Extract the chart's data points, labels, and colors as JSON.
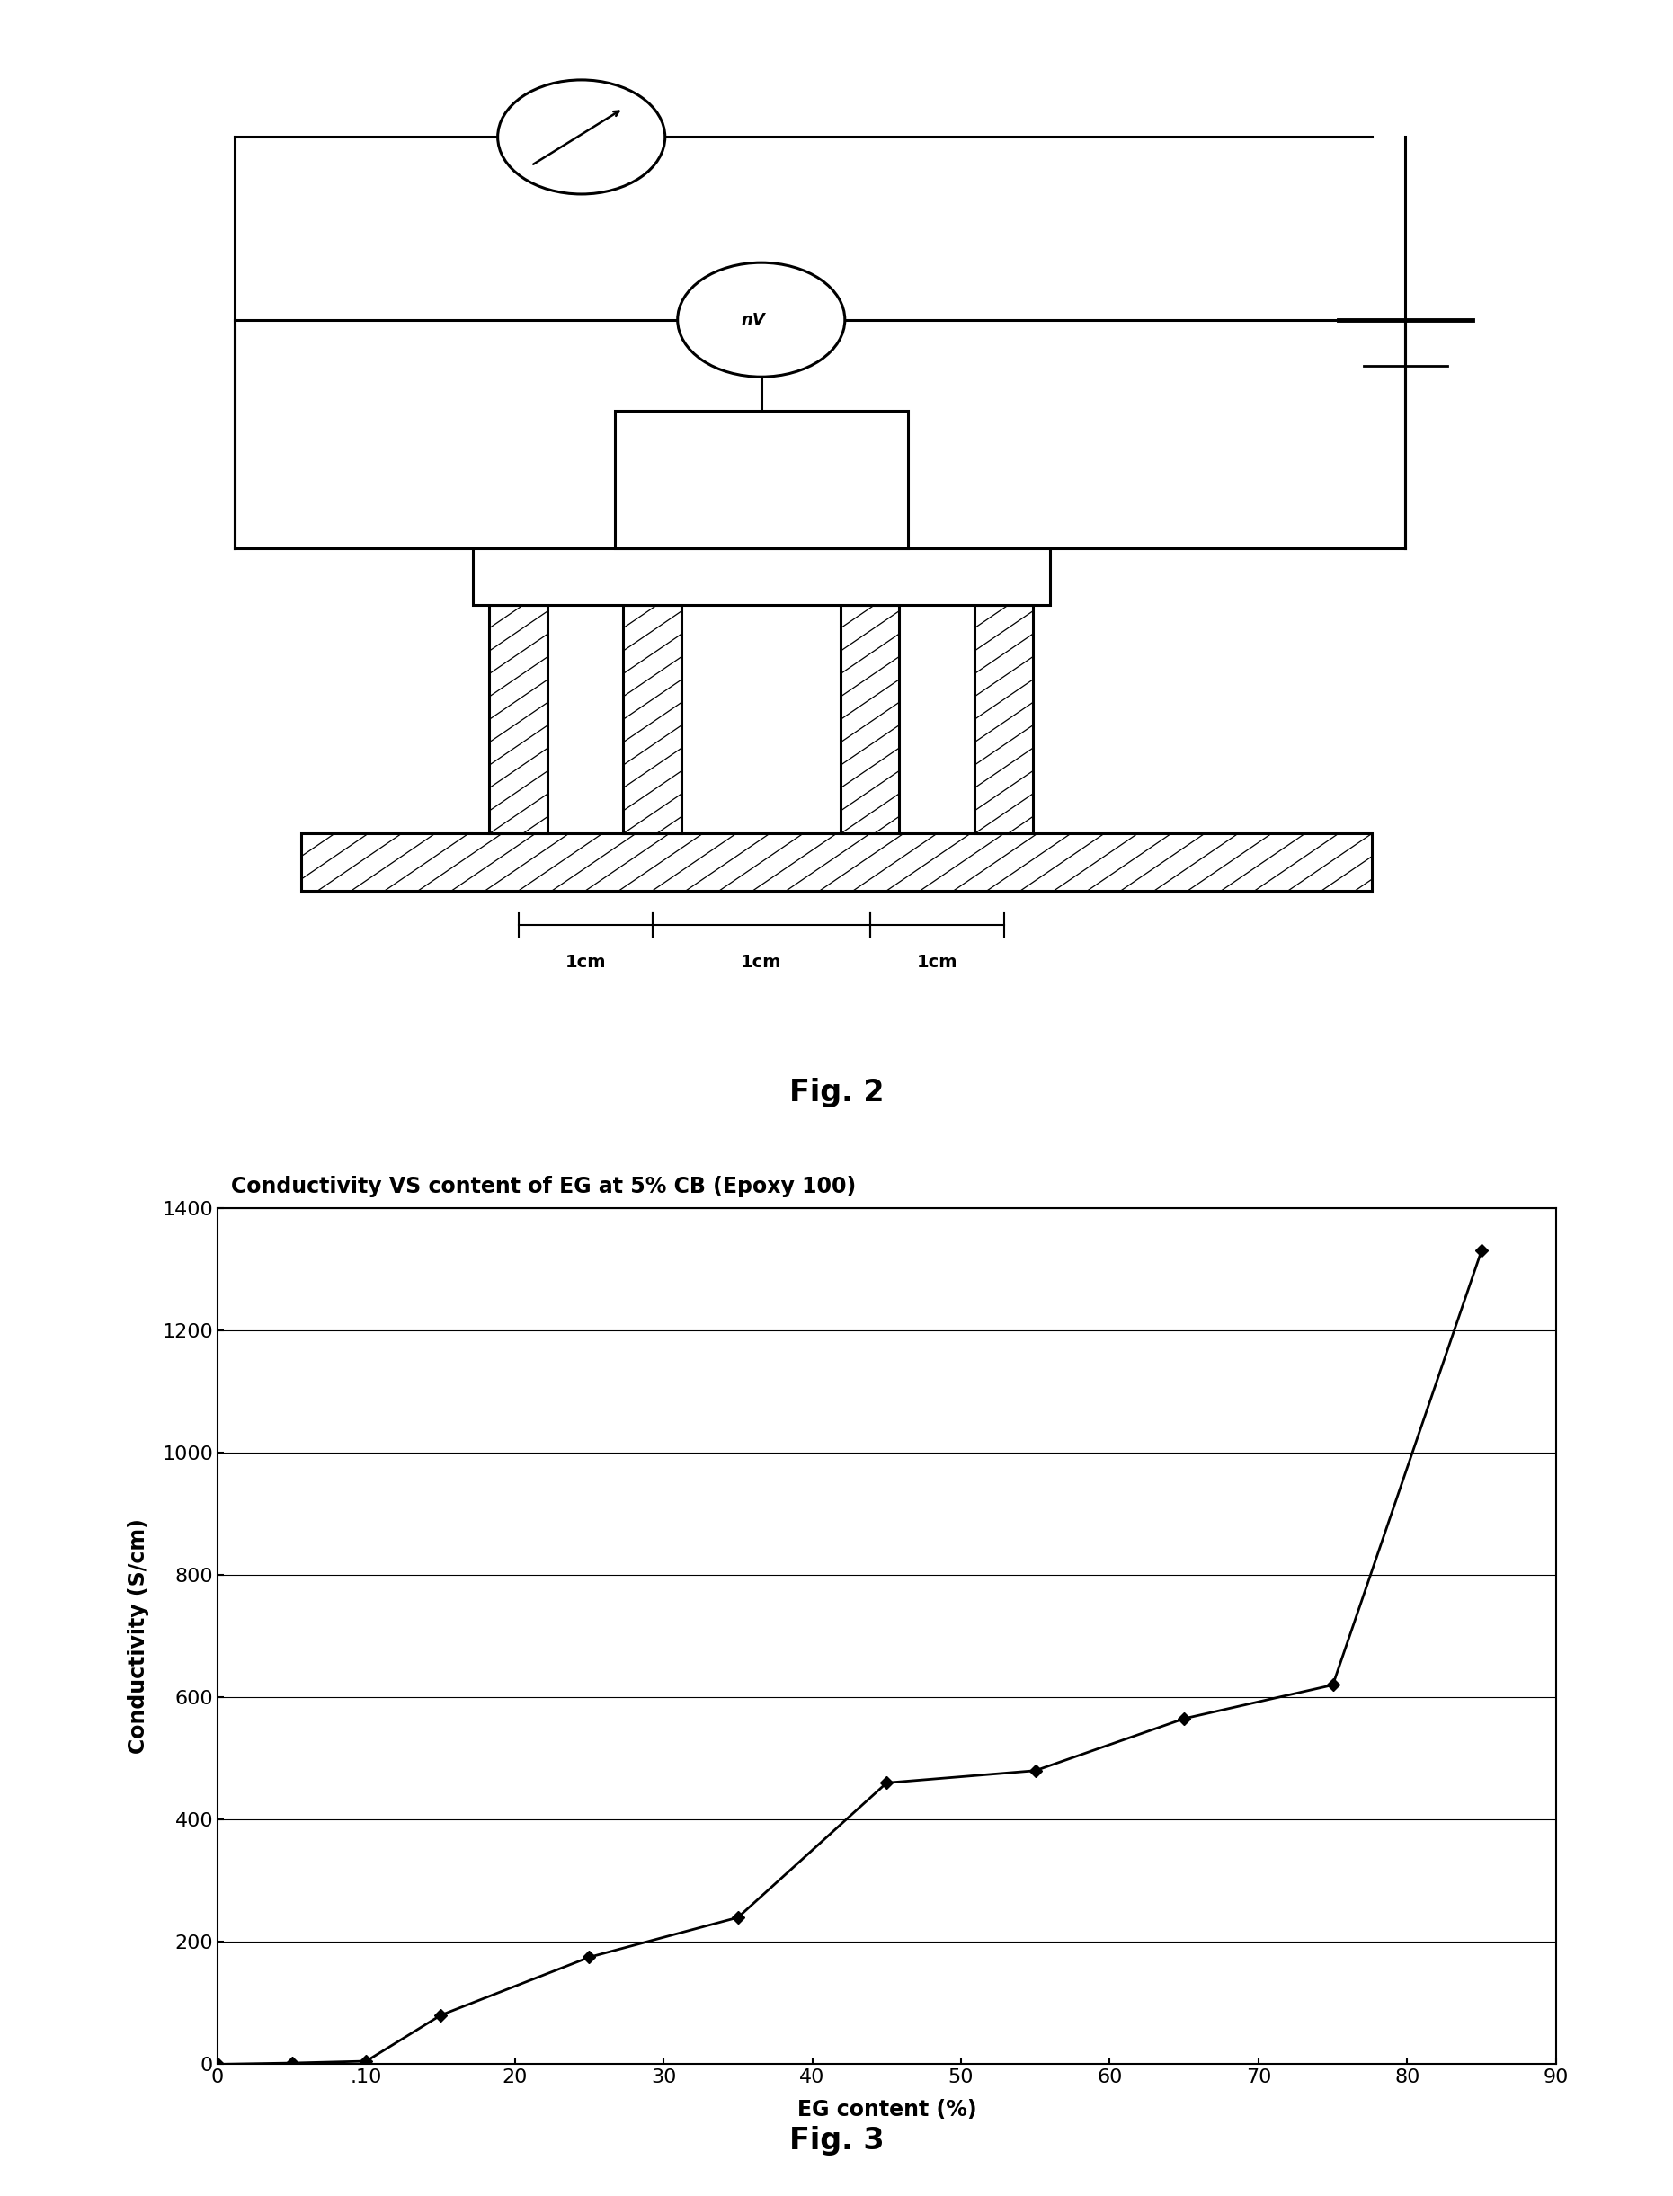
{
  "fig3_x": [
    0,
    5,
    10,
    15,
    25,
    35,
    45,
    55,
    65,
    75,
    85
  ],
  "fig3_y": [
    0,
    2,
    5,
    80,
    175,
    240,
    460,
    480,
    565,
    620,
    1330
  ],
  "title3": "Conductivity VS content of EG at 5% CB (Epoxy 100)",
  "xlabel3": "EG content (%)",
  "ylabel3": "Conductivity (S/cm)",
  "xlim3": [
    0,
    90
  ],
  "ylim3": [
    0,
    1400
  ],
  "xticks3": [
    0,
    10,
    20,
    30,
    40,
    50,
    60,
    70,
    80,
    90
  ],
  "xtick_labels3": [
    "0",
    ".10",
    "20",
    "30",
    "40",
    "50",
    "60",
    "70",
    "80",
    "90"
  ],
  "yticks3": [
    0,
    200,
    400,
    600,
    800,
    1000,
    1200,
    1400
  ],
  "fig2_caption": "Fig. 2",
  "fig3_caption": "Fig. 3",
  "bg_color": "#ffffff",
  "line_color": "#000000",
  "marker_color": "#000000"
}
